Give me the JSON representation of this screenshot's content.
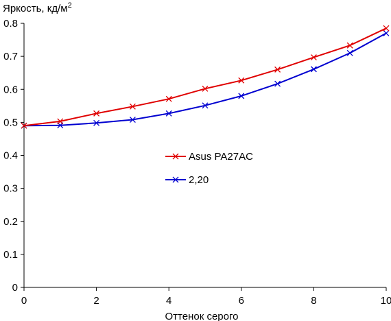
{
  "chart_data": {
    "type": "line",
    "ylabel": "Яркость, кд/м",
    "ylabel_sup": "2",
    "xlabel": "Оттенок серого",
    "xlim": [
      0,
      10
    ],
    "ylim": [
      0,
      0.8
    ],
    "x_ticks": [
      0,
      2,
      4,
      6,
      8,
      10
    ],
    "y_ticks": [
      0,
      0.1,
      0.2,
      0.3,
      0.4,
      0.5,
      0.6,
      0.7,
      0.8
    ],
    "x_tick_labels": [
      "0",
      "2",
      "4",
      "6",
      "8",
      "10"
    ],
    "y_tick_labels": [
      "0",
      "0.1",
      "0.2",
      "0.3",
      "0.4",
      "0.5",
      "0.6",
      "0.7",
      "0.8"
    ],
    "grid": false,
    "legend_position": "center",
    "x": [
      0,
      1,
      2,
      3,
      4,
      5,
      6,
      7,
      8,
      9,
      10
    ],
    "series": [
      {
        "name": "Asus PA27AC",
        "color": "#e00000",
        "marker": "x",
        "values": [
          0.49,
          0.503,
          0.527,
          0.548,
          0.571,
          0.602,
          0.627,
          0.66,
          0.697,
          0.733,
          0.785
        ]
      },
      {
        "name": "2,20",
        "color": "#0000d0",
        "marker": "x",
        "values": [
          0.49,
          0.491,
          0.498,
          0.508,
          0.527,
          0.551,
          0.58,
          0.617,
          0.661,
          0.71,
          0.77
        ]
      }
    ]
  }
}
